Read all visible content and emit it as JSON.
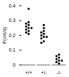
{
  "chart_data": {
    "type": "scatter",
    "y_label": "P(cm/s)",
    "categories": [
      "+/+",
      "+/-",
      "-/-"
    ],
    "values": [
      [
        0.38,
        0.29,
        0.28,
        0.27,
        0.26,
        0.25,
        0.25,
        0.24,
        0.23,
        0.22,
        0.21
      ],
      [
        0.27,
        0.25,
        0.23,
        0.22,
        0.21,
        0.2,
        0.19,
        0.19,
        0.18,
        0.16,
        0.15
      ],
      [
        0.07,
        0.06,
        0.05,
        0.04,
        0.03,
        0.03,
        0.02,
        0.01
      ]
    ],
    "color": "#000000",
    "marker": "circle",
    "ylim": [
      0,
      0.4
    ],
    "yticks": [
      0,
      0.1,
      0.2,
      0.3,
      0.4
    ],
    "grid": false
  }
}
